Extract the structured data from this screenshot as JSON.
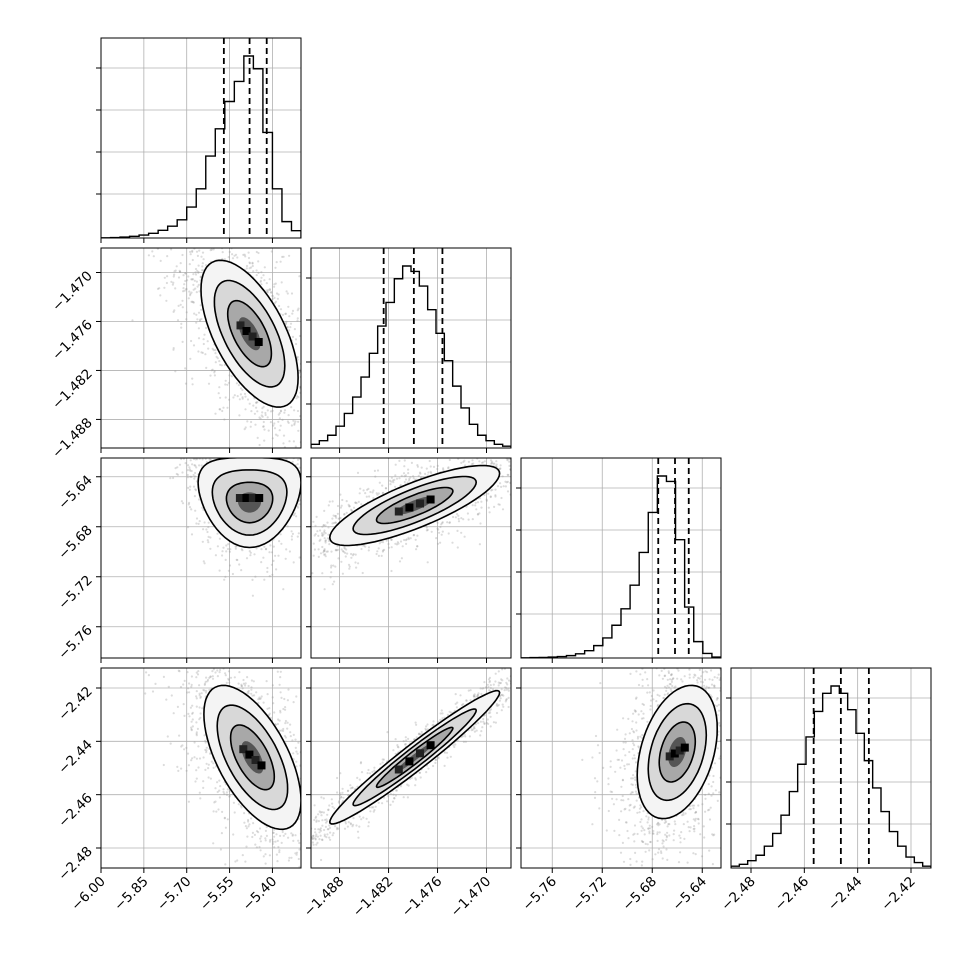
{
  "chart_data": {
    "type": "corner",
    "n_params": 4,
    "grid": true,
    "params": [
      {
        "range": [
          -6.0,
          -5.3
        ],
        "ticks": [
          -6.0,
          -5.85,
          -5.7,
          -5.55,
          -5.4
        ],
        "tick_labels": [
          "−6.00",
          "−5.85",
          "−5.70",
          "−5.55",
          "−5.40"
        ],
        "quantiles": [
          -5.57,
          -5.48,
          -5.42
        ],
        "hist": [
          0.1,
          0.2,
          0.5,
          0.9,
          1.6,
          2.6,
          4.2,
          6.5,
          10.0,
          17.0,
          27.0,
          45.0,
          60.0,
          75.0,
          86.0,
          100.0,
          93.0,
          58.0,
          27.0,
          9.0,
          4.0
        ]
      },
      {
        "range": [
          -1.4915,
          -1.467
        ],
        "ticks": [
          -1.488,
          -1.482,
          -1.476,
          -1.47
        ],
        "tick_labels": [
          "−1.488",
          "−1.482",
          "−1.476",
          "−1.470"
        ],
        "quantiles": [
          -1.4826,
          -1.4789,
          -1.4754
        ],
        "hist": [
          2.0,
          4.0,
          7.0,
          12.0,
          19.0,
          28.0,
          39.0,
          52.0,
          67.0,
          80.0,
          93.0,
          100.0,
          97.0,
          89.0,
          76.0,
          63.0,
          48.0,
          34.0,
          22.0,
          13.0,
          7.0,
          4.0,
          2.0,
          1.0
        ]
      },
      {
        "range": [
          -5.785,
          -5.625
        ],
        "ticks": [
          -5.76,
          -5.72,
          -5.68,
          -5.64
        ],
        "tick_labels": [
          "−5.76",
          "−5.72",
          "−5.68",
          "−5.64"
        ],
        "quantiles": [
          -5.6752,
          -5.6618,
          -5.6508
        ],
        "hist": [
          0.1,
          0.2,
          0.3,
          0.5,
          0.8,
          1.3,
          2.3,
          4.0,
          6.8,
          11.0,
          18.0,
          27.0,
          40.0,
          58.0,
          80.0,
          100.0,
          97.0,
          65.0,
          28.0,
          9.0,
          2.5,
          0.5
        ]
      },
      {
        "range": [
          -2.4875,
          -2.4125
        ],
        "ticks": [
          -2.48,
          -2.46,
          -2.44,
          -2.42
        ],
        "tick_labels": [
          "−2.48",
          "−2.46",
          "−2.44",
          "−2.42"
        ],
        "quantiles": [
          -2.4565,
          -2.4463,
          -2.4358
        ],
        "hist": [
          1.0,
          2.0,
          4.0,
          7.0,
          12.0,
          19.0,
          29.0,
          42.0,
          57.0,
          72.0,
          86.0,
          96.0,
          100.0,
          96.0,
          87.0,
          74.0,
          59.0,
          44.0,
          31.0,
          20.0,
          12.0,
          6.0,
          3.0,
          1.0
        ]
      }
    ],
    "pairs": [
      {
        "x": 0,
        "y": 1,
        "center": [
          -5.48,
          -1.4775
        ],
        "sigma": [
          0.085,
          0.0045
        ],
        "rho": -0.6,
        "skew": 0
      },
      {
        "x": 0,
        "y": 2,
        "center": [
          -5.48,
          -5.657
        ],
        "sigma": [
          0.09,
          0.018
        ],
        "rho": 0.0,
        "skew": 1
      },
      {
        "x": 1,
        "y": 2,
        "center": [
          -1.4788,
          -5.663
        ],
        "sigma": [
          0.0052,
          0.016
        ],
        "rho": 0.8,
        "skew": 0
      },
      {
        "x": 0,
        "y": 3,
        "center": [
          -5.47,
          -2.446
        ],
        "sigma": [
          0.085,
          0.0135
        ],
        "rho": -0.6,
        "skew": 0
      },
      {
        "x": 1,
        "y": 3,
        "center": [
          -1.4788,
          -2.446
        ],
        "sigma": [
          0.0052,
          0.0125
        ],
        "rho": 0.97,
        "skew": 0
      },
      {
        "x": 2,
        "y": 3,
        "center": [
          -5.66,
          -2.444
        ],
        "sigma": [
          0.016,
          0.0125
        ],
        "rho": 0.35,
        "skew": 0
      }
    ]
  }
}
